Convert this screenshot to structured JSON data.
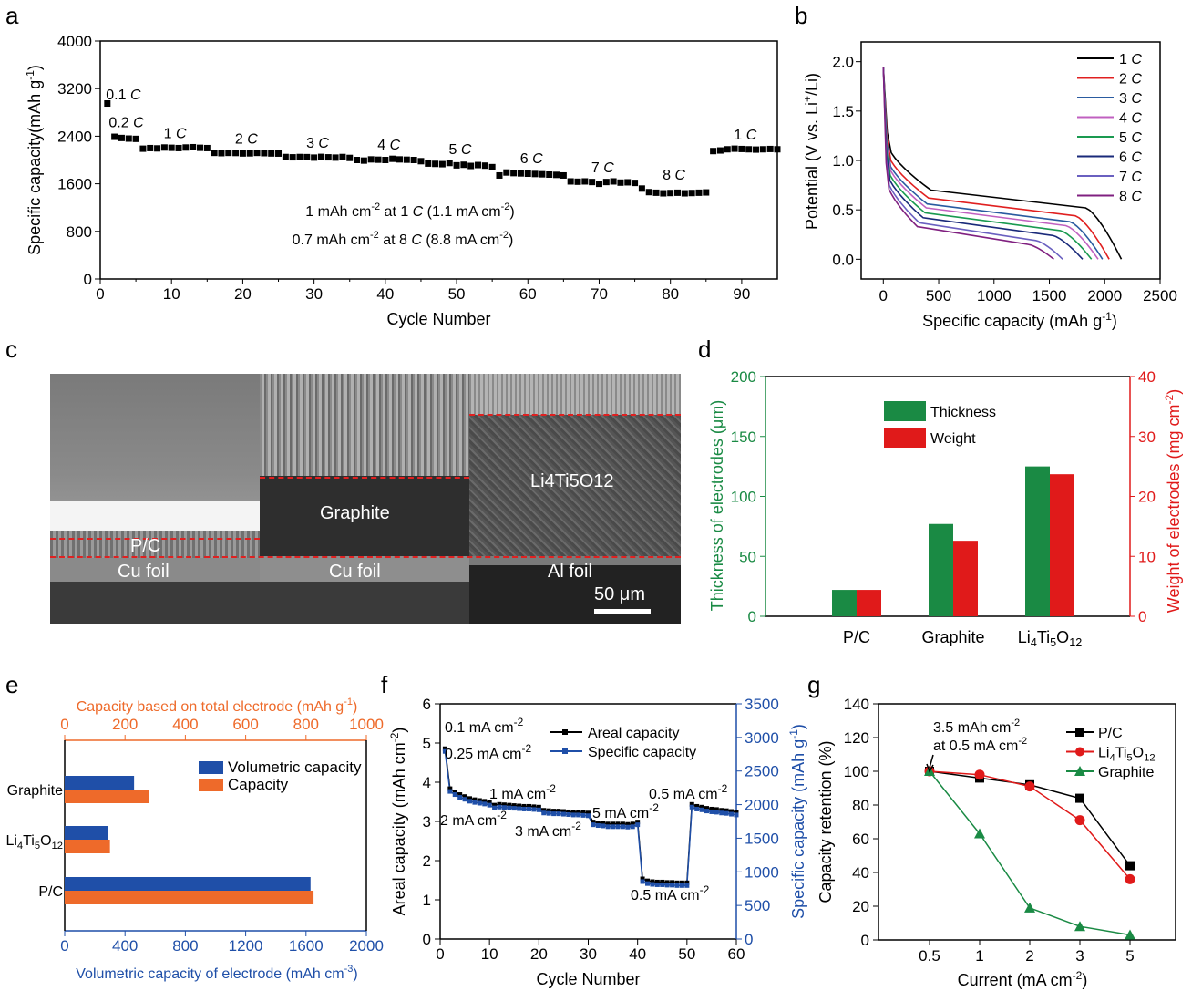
{
  "panels": {
    "a": "a",
    "b": "b",
    "c": "c",
    "d": "d",
    "e": "e",
    "f": "f",
    "g": "g"
  },
  "chart_data": [
    {
      "id": "a",
      "type": "scatter",
      "xlabel": "Cycle Number",
      "ylabel": "Specific capacity(mAh g-1)",
      "xlim": [
        0,
        95
      ],
      "ylim": [
        0,
        4000
      ],
      "xticks": [
        0,
        10,
        20,
        30,
        40,
        50,
        60,
        70,
        80,
        90
      ],
      "yticks": [
        0,
        800,
        1600,
        2400,
        3200,
        4000
      ],
      "segments": [
        {
          "label": "0.1 C",
          "x0": 1,
          "x1": 1,
          "values": [
            2950
          ]
        },
        {
          "label": "0.2 C",
          "x0": 2,
          "x1": 5,
          "values": [
            2390,
            2370,
            2360,
            2355
          ]
        },
        {
          "label": "1 C",
          "x0": 6,
          "x1": 15,
          "values": [
            2190,
            2200,
            2195,
            2210,
            2205,
            2200,
            2210,
            2215,
            2205,
            2200
          ]
        },
        {
          "label": "2 C",
          "x0": 16,
          "x1": 25,
          "values": [
            2120,
            2115,
            2120,
            2118,
            2110,
            2112,
            2120,
            2115,
            2110,
            2108
          ]
        },
        {
          "label": "3 C",
          "x0": 26,
          "x1": 35,
          "values": [
            2050,
            2045,
            2050,
            2048,
            2040,
            2052,
            2045,
            2040,
            2050,
            2035
          ]
        },
        {
          "label": "4 C",
          "x0": 36,
          "x1": 45,
          "values": [
            2000,
            1990,
            2010,
            2005,
            2000,
            2020,
            2010,
            2005,
            2000,
            1980
          ]
        },
        {
          "label": "5 C",
          "x0": 46,
          "x1": 55,
          "values": [
            1940,
            1935,
            1930,
            1950,
            1910,
            1920,
            1900,
            1915,
            1905,
            1880
          ]
        },
        {
          "label": "6 C",
          "x0": 56,
          "x1": 65,
          "values": [
            1740,
            1790,
            1780,
            1775,
            1770,
            1765,
            1760,
            1755,
            1750,
            1740
          ]
        },
        {
          "label": "7 C",
          "x0": 66,
          "x1": 75,
          "values": [
            1640,
            1635,
            1640,
            1630,
            1600,
            1630,
            1640,
            1620,
            1625,
            1615
          ]
        },
        {
          "label": "8 C",
          "x0": 76,
          "x1": 85,
          "values": [
            1520,
            1460,
            1450,
            1440,
            1445,
            1450,
            1440,
            1445,
            1450,
            1455
          ]
        },
        {
          "label": "1 C",
          "x0": 86,
          "x1": 95,
          "values": [
            2150,
            2160,
            2180,
            2190,
            2185,
            2180,
            2175,
            2180,
            2185,
            2180
          ]
        }
      ],
      "annotations": [
        "1 mAh cm-2 at 1 C (1.1 mA cm-2)",
        "0.7 mAh cm-2 at 8 C (8.8 mA cm-2)"
      ]
    },
    {
      "id": "b",
      "type": "line",
      "xlabel": "Specific capacity (mAh g-1)",
      "ylabel": "Potential (V vs. Li+/Li)",
      "xlim": [
        -200,
        2500
      ],
      "ylim": [
        -0.2,
        2.2
      ],
      "xticks": [
        0,
        500,
        1000,
        1500,
        2000,
        2500
      ],
      "yticks": [
        0.0,
        0.5,
        1.0,
        1.5,
        2.0
      ],
      "series": [
        {
          "name": "1 C",
          "color": "#000000",
          "capacity": 2150,
          "plateau": 0.7
        },
        {
          "name": "2 C",
          "color": "#e02020",
          "capacity": 2040,
          "plateau": 0.62
        },
        {
          "name": "3 C",
          "color": "#2a5ba0",
          "capacity": 1980,
          "plateau": 0.56
        },
        {
          "name": "4 C",
          "color": "#c060c0",
          "capacity": 1940,
          "plateau": 0.52
        },
        {
          "name": "5 C",
          "color": "#1a9a50",
          "capacity": 1880,
          "plateau": 0.47
        },
        {
          "name": "6 C",
          "color": "#1a2a7a",
          "capacity": 1800,
          "plateau": 0.42
        },
        {
          "name": "7 C",
          "color": "#6a60c0",
          "capacity": 1620,
          "plateau": 0.37
        },
        {
          "name": "8 C",
          "color": "#802080",
          "capacity": 1540,
          "plateau": 0.33
        }
      ]
    },
    {
      "id": "d",
      "type": "bar",
      "categories": [
        "P/C",
        "Graphite",
        "Li4Ti5O12"
      ],
      "ylabel": "Thickness of electrodes (μm)",
      "y2label": "Weight of electrodes (mg cm-2)",
      "ylim": [
        0,
        200
      ],
      "y2lim": [
        0,
        40
      ],
      "yticks": [
        0,
        50,
        100,
        150,
        200
      ],
      "y2ticks": [
        0,
        10,
        20,
        30,
        40
      ],
      "series": [
        {
          "name": "Thickness",
          "color": "#1a8a44",
          "values": [
            22,
            77,
            125
          ],
          "axis": "left"
        },
        {
          "name": "Weight",
          "color": "#e01a1a",
          "values": [
            4.4,
            12.6,
            23.7
          ],
          "axis": "right"
        }
      ]
    },
    {
      "id": "e",
      "type": "bar",
      "orientation": "horizontal",
      "categories": [
        "Graphite",
        "Li4Ti5O12",
        "P/C"
      ],
      "xlabel": "Volumetric capacity of electrode (mAh cm-3)",
      "x2label": "Capacity based on total electrode (mAh g-1)",
      "xlim": [
        0,
        2000
      ],
      "x2lim": [
        0,
        1000
      ],
      "xticks": [
        0,
        400,
        800,
        1200,
        1600,
        2000
      ],
      "x2ticks": [
        0,
        200,
        400,
        600,
        800,
        1000
      ],
      "series": [
        {
          "name": "Volumetric capacity",
          "color": "#1f4fa8",
          "values": [
            460,
            290,
            1630
          ],
          "axis": "bottom"
        },
        {
          "name": "Capacity",
          "color": "#ee6a2a",
          "values": [
            280,
            150,
            825
          ],
          "axis": "top"
        }
      ]
    },
    {
      "id": "f",
      "type": "line",
      "xlabel": "Cycle Number",
      "ylabel": "Areal capacity (mAh cm-2)",
      "y2label": "Specific capacity (mAh g-1)",
      "xlim": [
        0,
        60
      ],
      "ylim": [
        0,
        6
      ],
      "y2lim": [
        0,
        3500
      ],
      "xticks": [
        0,
        10,
        20,
        30,
        40,
        50,
        60
      ],
      "yticks": [
        0,
        1,
        2,
        3,
        4,
        5,
        6
      ],
      "y2ticks": [
        0,
        500,
        1000,
        1500,
        2000,
        2500,
        3000,
        3500
      ],
      "series": [
        {
          "name": "Areal capacity",
          "color": "#000000"
        },
        {
          "name": "Specific capacity",
          "color": "#1f4fa8"
        }
      ],
      "x": [
        1,
        2,
        3,
        4,
        5,
        6,
        7,
        8,
        9,
        10,
        11,
        12,
        13,
        14,
        15,
        16,
        17,
        18,
        19,
        20,
        21,
        22,
        23,
        24,
        25,
        26,
        27,
        28,
        29,
        30,
        31,
        32,
        33,
        34,
        35,
        36,
        37,
        38,
        39,
        40,
        41,
        42,
        43,
        44,
        45,
        46,
        47,
        48,
        49,
        50,
        51,
        52,
        53,
        54,
        55,
        56,
        57,
        58,
        59,
        60
      ],
      "areal": [
        4.82,
        3.8,
        3.72,
        3.65,
        3.6,
        3.55,
        3.52,
        3.5,
        3.48,
        3.45,
        3.38,
        3.4,
        3.39,
        3.38,
        3.37,
        3.36,
        3.35,
        3.35,
        3.34,
        3.33,
        3.25,
        3.24,
        3.23,
        3.23,
        3.22,
        3.21,
        3.2,
        3.2,
        3.19,
        3.18,
        2.95,
        2.93,
        2.92,
        2.9,
        2.9,
        2.9,
        2.9,
        2.89,
        2.9,
        2.95,
        1.5,
        1.45,
        1.43,
        1.42,
        1.42,
        1.41,
        1.41,
        1.4,
        1.4,
        1.4,
        3.4,
        3.35,
        3.33,
        3.3,
        3.28,
        3.27,
        3.25,
        3.24,
        3.22,
        3.2
      ],
      "annotations": [
        "0.1 mA cm-2",
        "0.25 mA cm-2",
        "1 mA cm-2",
        "0.5 mA cm-2",
        "2 mA cm-2",
        "3 mA cm-2",
        "5 mA cm-2",
        "0.5 mA cm-2"
      ]
    },
    {
      "id": "g",
      "type": "line",
      "xlabel": "Current (mA cm-2)",
      "ylabel": "Capacity retention (%)",
      "categories": [
        "0.5",
        "1",
        "2",
        "3",
        "5"
      ],
      "ylim": [
        0,
        140
      ],
      "yticks": [
        0,
        20,
        40,
        60,
        80,
        100,
        120,
        140
      ],
      "series": [
        {
          "name": "P/C",
          "color": "#000000",
          "marker": "square",
          "values": [
            100,
            96,
            92,
            84,
            44
          ]
        },
        {
          "name": "Li4Ti5O12",
          "color": "#e01a1a",
          "marker": "circle",
          "values": [
            100,
            98,
            91,
            71,
            36
          ]
        },
        {
          "name": "Graphite",
          "color": "#1a8a44",
          "marker": "triangle",
          "values": [
            100,
            63,
            19,
            8,
            3
          ]
        }
      ],
      "annotation": "3.5 mAh cm-2 at 0.5 mA cm-2"
    }
  ],
  "sem": {
    "labels": {
      "pc": "P/C",
      "cu1": "Cu foil",
      "graphite": "Graphite",
      "cu2": "Cu foil",
      "lto": "Li4Ti5O12",
      "al": "Al foil",
      "scale": "50 μm"
    }
  },
  "colors": {
    "thickness": "#1a8a44",
    "weight": "#e01a1a",
    "volumetric": "#1f4fa8",
    "capacity": "#ee6a2a"
  }
}
